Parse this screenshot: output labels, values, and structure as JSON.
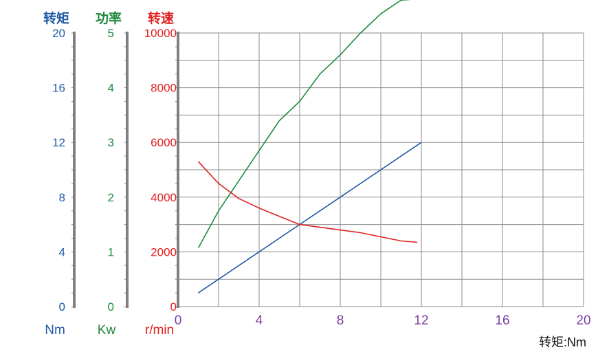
{
  "colors": {
    "torque": "#1f5aa6",
    "power": "#1e8a3c",
    "speed": "#e02020",
    "xaxis": "#7a3fa0",
    "grid": "#8a8a8a",
    "axis_bar": "#808080"
  },
  "chart_data": {
    "type": "line",
    "xlabel": "转矩:Nm",
    "xlim": [
      0,
      20
    ],
    "x_ticks": [
      "0",
      "4",
      "8",
      "12",
      "16",
      "20"
    ],
    "grid": true,
    "axes": [
      {
        "key": "torque",
        "title": "转矩",
        "unit": "Nm",
        "ylim": [
          0,
          20
        ],
        "ticks": [
          "0",
          "4",
          "8",
          "12",
          "16",
          "20"
        ]
      },
      {
        "key": "power",
        "title": "功率",
        "unit": "Kw",
        "ylim": [
          0,
          5
        ],
        "ticks": [
          "0",
          "1",
          "2",
          "3",
          "4",
          "5"
        ]
      },
      {
        "key": "speed",
        "title": "转速",
        "unit": "r/min",
        "ylim": [
          0,
          10000
        ],
        "ticks": [
          "0",
          "2000",
          "4000",
          "6000",
          "8000",
          "10000"
        ]
      }
    ],
    "series": [
      {
        "axis": "torque",
        "color": "#1f5aa6",
        "x": [
          1,
          12
        ],
        "values": [
          1,
          12
        ]
      },
      {
        "axis": "power",
        "color": "#1e8a3c",
        "x": [
          1,
          2,
          3,
          4,
          5,
          6,
          7,
          8,
          9,
          10,
          11,
          11.8
        ],
        "values": [
          1.07,
          1.75,
          2.3,
          2.85,
          3.4,
          3.75,
          4.25,
          4.6,
          5.0,
          5.35,
          5.6,
          5.62
        ]
      },
      {
        "axis": "speed",
        "color": "#e02020",
        "x": [
          1,
          2,
          3,
          4,
          5,
          6,
          7,
          8,
          9,
          10,
          11,
          11.8
        ],
        "values": [
          5300,
          4500,
          3950,
          3600,
          3300,
          3000,
          2900,
          2800,
          2700,
          2550,
          2400,
          2350
        ]
      }
    ]
  }
}
